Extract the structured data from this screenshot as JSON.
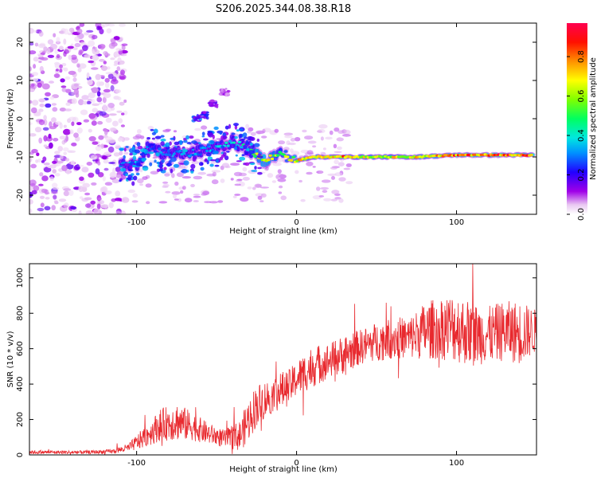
{
  "figure": {
    "title": "S206.2025.344.08.38.R18"
  },
  "chart_data": [
    {
      "type": "heatmap",
      "xlabel": "Height of straight line (km)",
      "ylabel": "Frequency (Hz)",
      "xlim": [
        -167,
        150
      ],
      "ylim": [
        -25,
        25
      ],
      "xticks": [
        -100,
        0,
        100
      ],
      "yticks": [
        -20,
        -10,
        0,
        10,
        20
      ],
      "colorbar": {
        "label": "Normalized spectral amplitude",
        "range": [
          0.0,
          0.97
        ],
        "ticks": [
          0.0,
          0.2,
          0.4,
          0.6,
          0.8
        ]
      },
      "signal_band": {
        "points": [
          {
            "x": -110,
            "freq": -12,
            "amp": 0.35
          },
          {
            "x": -100,
            "freq": -12,
            "amp": 0.35
          },
          {
            "x": -92,
            "freq": -7,
            "amp": 0.3
          },
          {
            "x": -85,
            "freq": -9,
            "amp": 0.32
          },
          {
            "x": -75,
            "freq": -9,
            "amp": 0.35
          },
          {
            "x": -65,
            "freq": -9,
            "amp": 0.35
          },
          {
            "x": -55,
            "freq": -8,
            "amp": 0.36
          },
          {
            "x": -40,
            "freq": -6,
            "amp": 0.4
          },
          {
            "x": -30,
            "freq": -8,
            "amp": 0.45
          },
          {
            "x": -20,
            "freq": -11,
            "amp": 0.8
          },
          {
            "x": -10,
            "freq": -9,
            "amp": 0.55
          },
          {
            "x": 0,
            "freq": -11,
            "amp": 0.75
          },
          {
            "x": 10,
            "freq": -10,
            "amp": 0.8
          },
          {
            "x": 25,
            "freq": -10,
            "amp": 0.85
          },
          {
            "x": 50,
            "freq": -10,
            "amp": 0.7
          },
          {
            "x": 75,
            "freq": -10,
            "amp": 0.75
          },
          {
            "x": 100,
            "freq": -9.5,
            "amp": 0.85
          },
          {
            "x": 125,
            "freq": -9.5,
            "amp": 0.9
          },
          {
            "x": 148,
            "freq": -9.5,
            "amp": 0.9
          }
        ],
        "branch": [
          {
            "x": -62,
            "freq": 0,
            "amp": 0.25
          },
          {
            "x": -58,
            "freq": 1,
            "amp": 0.2
          },
          {
            "x": -52,
            "freq": 4,
            "amp": 0.15
          },
          {
            "x": -45,
            "freq": 7,
            "amp": 0.1
          }
        ]
      }
    },
    {
      "type": "line",
      "xlabel": "Height of straight line (km)",
      "ylabel": "SNR (10 * v/v)",
      "xlim": [
        -167,
        150
      ],
      "ylim": [
        0,
        1080
      ],
      "xticks": [
        -100,
        0,
        100
      ],
      "yticks": [
        0,
        200,
        400,
        600,
        800,
        1000
      ],
      "series": [
        {
          "color": "#e8292e",
          "x": [
            -167,
            -150,
            -130,
            -115,
            -105,
            -95,
            -85,
            -75,
            -65,
            -55,
            -45,
            -35,
            -30,
            -25,
            -20,
            -15,
            -10,
            -5,
            0,
            10,
            20,
            30,
            40,
            50,
            60,
            70,
            80,
            90,
            100,
            110,
            120,
            130,
            140,
            150
          ],
          "y": [
            15,
            15,
            15,
            20,
            40,
            100,
            170,
            190,
            160,
            120,
            90,
            110,
            200,
            280,
            310,
            340,
            360,
            380,
            430,
            500,
            530,
            570,
            610,
            640,
            660,
            660,
            700,
            720,
            720,
            680,
            680,
            700,
            690,
            700
          ],
          "amplitude": [
            10,
            10,
            10,
            12,
            25,
            60,
            90,
            110,
            80,
            60,
            50,
            90,
            120,
            120,
            110,
            100,
            110,
            100,
            100,
            120,
            100,
            110,
            100,
            110,
            120,
            120,
            160,
            180,
            200,
            180,
            160,
            170,
            180,
            120
          ]
        }
      ]
    }
  ]
}
